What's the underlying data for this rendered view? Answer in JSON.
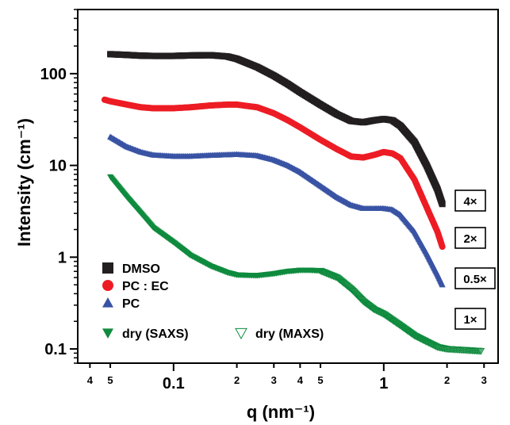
{
  "chart_data": {
    "type": "line",
    "xlabel": "q (nm⁻¹)",
    "ylabel": "Intensity (cm⁻¹)",
    "xscale": "log",
    "yscale": "log",
    "xlim": [
      0.035,
      3.5
    ],
    "ylim": [
      0.07,
      500
    ],
    "grid": false,
    "legend_position": "bottom-left",
    "x_ticks": [
      {
        "value": 0.04,
        "label": "4",
        "major": false
      },
      {
        "value": 0.05,
        "label": "5",
        "major": false
      },
      {
        "value": 0.1,
        "label": "0.1",
        "major": true
      },
      {
        "value": 0.2,
        "label": "2",
        "major": false
      },
      {
        "value": 0.3,
        "label": "3",
        "major": false
      },
      {
        "value": 0.4,
        "label": "4",
        "major": false
      },
      {
        "value": 0.5,
        "label": "5",
        "major": false
      },
      {
        "value": 1,
        "label": "1",
        "major": true
      },
      {
        "value": 2,
        "label": "2",
        "major": false
      },
      {
        "value": 3,
        "label": "3",
        "major": false
      }
    ],
    "y_ticks": [
      {
        "value": 0.1,
        "label": "0.1"
      },
      {
        "value": 1,
        "label": "1"
      },
      {
        "value": 10,
        "label": "10"
      },
      {
        "value": 100,
        "label": "100"
      }
    ],
    "series": [
      {
        "name": "DMSO",
        "marker": "square",
        "color": "#231f20",
        "factor_label": "4×",
        "points": [
          [
            0.05,
            163
          ],
          [
            0.06,
            160
          ],
          [
            0.07,
            157
          ],
          [
            0.08,
            156
          ],
          [
            0.1,
            156
          ],
          [
            0.12,
            158
          ],
          [
            0.15,
            159
          ],
          [
            0.18,
            154
          ],
          [
            0.2,
            145
          ],
          [
            0.25,
            118
          ],
          [
            0.3,
            95
          ],
          [
            0.35,
            77
          ],
          [
            0.4,
            63
          ],
          [
            0.5,
            46
          ],
          [
            0.6,
            36
          ],
          [
            0.7,
            30.5
          ],
          [
            0.8,
            29.5
          ],
          [
            0.9,
            31
          ],
          [
            1.0,
            32
          ],
          [
            1.1,
            31
          ],
          [
            1.2,
            27
          ],
          [
            1.4,
            18
          ],
          [
            1.6,
            10
          ],
          [
            1.8,
            5.5
          ],
          [
            1.9,
            3.8
          ]
        ]
      },
      {
        "name": "PC : EC",
        "marker": "circle",
        "color": "#ed1c24",
        "factor_label": "2×",
        "points": [
          [
            0.047,
            52
          ],
          [
            0.05,
            50
          ],
          [
            0.06,
            46
          ],
          [
            0.07,
            43
          ],
          [
            0.08,
            42
          ],
          [
            0.1,
            42
          ],
          [
            0.12,
            43
          ],
          [
            0.15,
            45
          ],
          [
            0.18,
            46
          ],
          [
            0.2,
            46
          ],
          [
            0.25,
            43
          ],
          [
            0.3,
            37
          ],
          [
            0.35,
            31
          ],
          [
            0.4,
            26
          ],
          [
            0.5,
            19
          ],
          [
            0.6,
            15
          ],
          [
            0.7,
            12.5
          ],
          [
            0.8,
            12.2
          ],
          [
            0.9,
            13
          ],
          [
            1.0,
            14
          ],
          [
            1.1,
            13.5
          ],
          [
            1.2,
            12
          ],
          [
            1.4,
            7
          ],
          [
            1.6,
            3.5
          ],
          [
            1.8,
            1.9
          ],
          [
            1.9,
            1.3
          ]
        ]
      },
      {
        "name": "PC",
        "marker": "triangle-up",
        "color": "#3953a4",
        "factor_label": "0.5×",
        "points": [
          [
            0.05,
            20.5
          ],
          [
            0.06,
            16
          ],
          [
            0.07,
            14
          ],
          [
            0.08,
            13
          ],
          [
            0.1,
            12.6
          ],
          [
            0.12,
            12.6
          ],
          [
            0.15,
            12.9
          ],
          [
            0.2,
            13.2
          ],
          [
            0.25,
            12.8
          ],
          [
            0.3,
            11.5
          ],
          [
            0.35,
            10
          ],
          [
            0.4,
            8.5
          ],
          [
            0.5,
            6
          ],
          [
            0.6,
            4.5
          ],
          [
            0.7,
            3.7
          ],
          [
            0.8,
            3.4
          ],
          [
            0.9,
            3.4
          ],
          [
            1.0,
            3.4
          ],
          [
            1.1,
            3.3
          ],
          [
            1.2,
            2.9
          ],
          [
            1.4,
            1.9
          ],
          [
            1.6,
            1.1
          ],
          [
            1.8,
            0.65
          ],
          [
            1.9,
            0.5
          ]
        ]
      },
      {
        "name": "dry (SAXS)",
        "marker": "triangle-down",
        "color": "#0f8b3e",
        "factor_label": "1×",
        "points": [
          [
            0.05,
            7.5
          ],
          [
            0.06,
            4.5
          ],
          [
            0.07,
            3
          ],
          [
            0.08,
            2.1
          ],
          [
            0.1,
            1.45
          ],
          [
            0.12,
            1.05
          ],
          [
            0.15,
            0.8
          ],
          [
            0.18,
            0.68
          ],
          [
            0.2,
            0.64
          ],
          [
            0.25,
            0.63
          ],
          [
            0.3,
            0.66
          ],
          [
            0.35,
            0.7
          ],
          [
            0.4,
            0.72
          ],
          [
            0.45,
            0.72
          ],
          [
            0.5,
            0.71
          ]
        ]
      },
      {
        "name": "dry (MAXS)",
        "marker": "triangle-down-open",
        "color": "#0f8b3e",
        "points": [
          [
            0.5,
            0.71
          ],
          [
            0.6,
            0.6
          ],
          [
            0.7,
            0.45
          ],
          [
            0.8,
            0.33
          ],
          [
            0.9,
            0.27
          ],
          [
            1.0,
            0.24
          ],
          [
            1.2,
            0.18
          ],
          [
            1.4,
            0.14
          ],
          [
            1.6,
            0.12
          ],
          [
            1.8,
            0.105
          ],
          [
            2.0,
            0.1
          ],
          [
            2.5,
            0.097
          ],
          [
            2.9,
            0.095
          ]
        ]
      }
    ]
  }
}
